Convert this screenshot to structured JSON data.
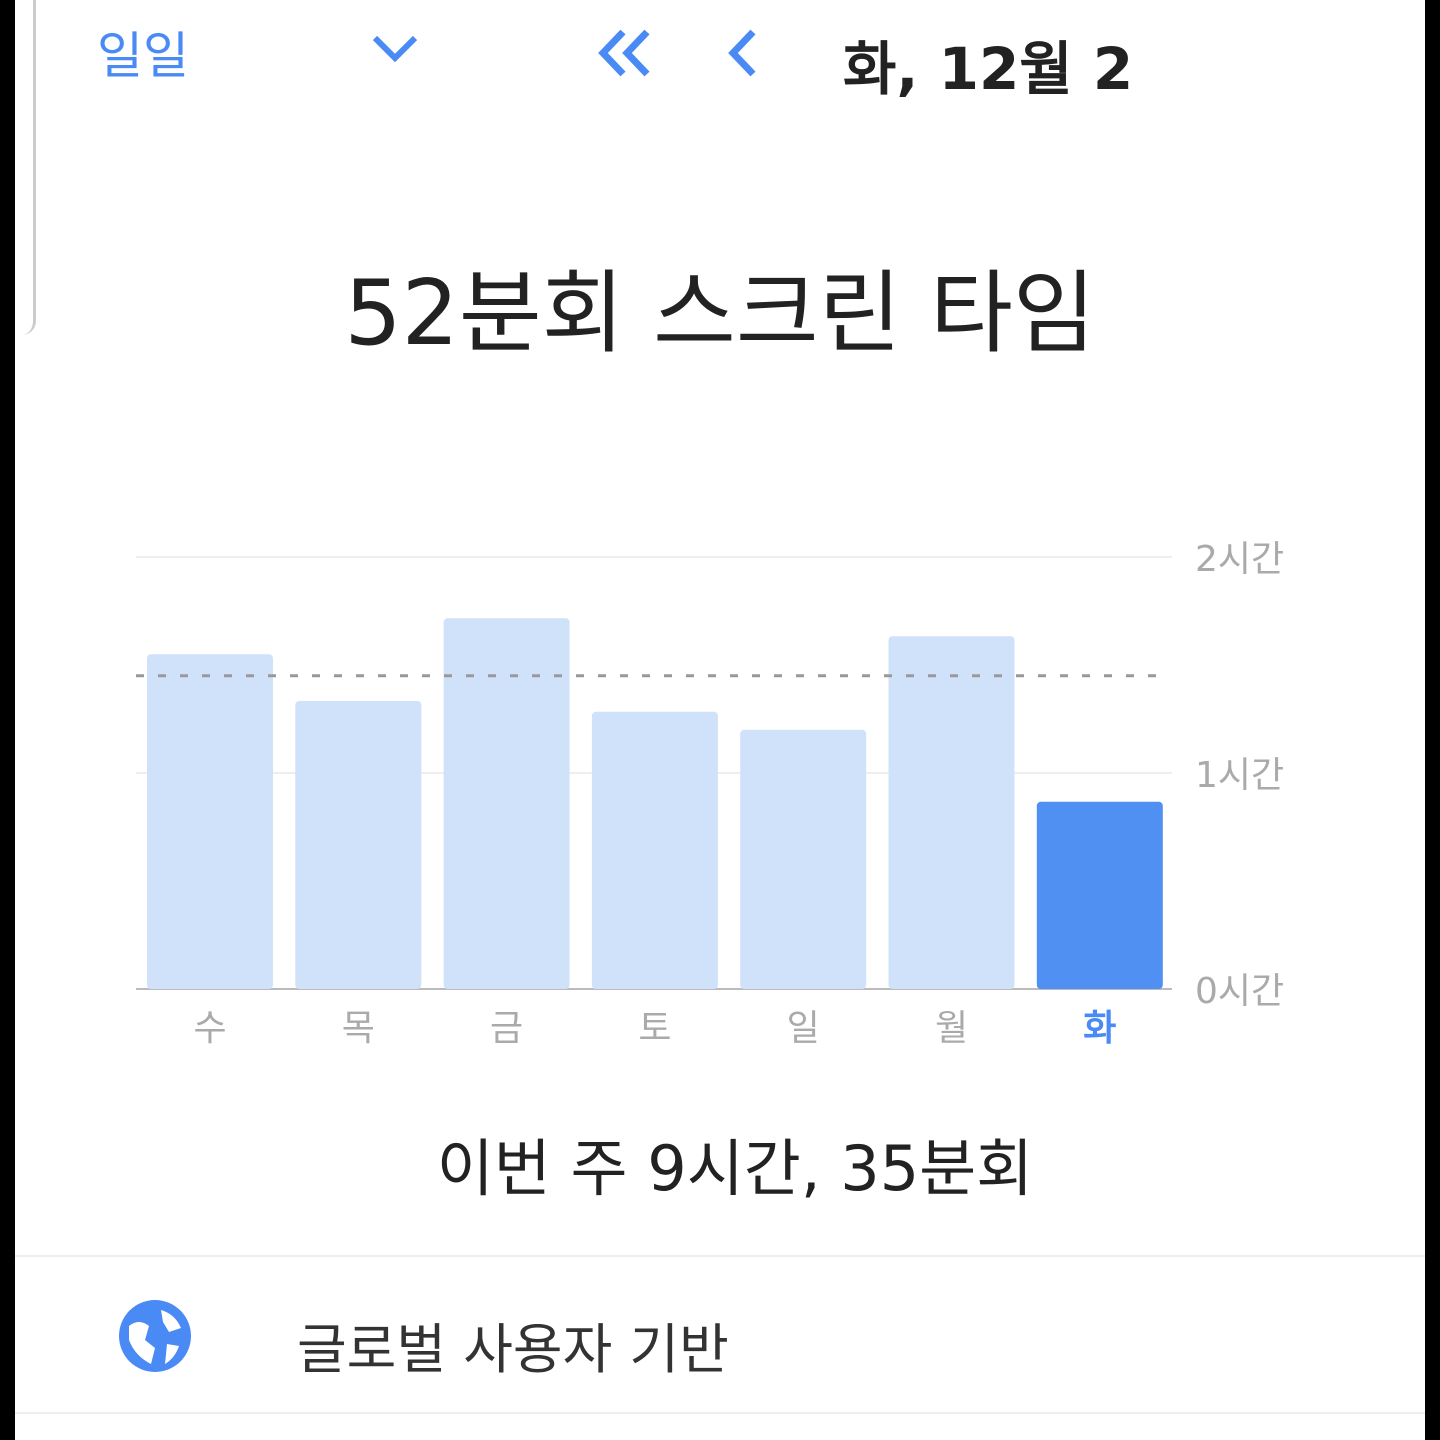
{
  "header": {
    "range_label": "일일",
    "date": "화, 12월 2"
  },
  "title": "52분회 스크린 타임",
  "chart_data": {
    "type": "bar",
    "categories": [
      "수",
      "목",
      "금",
      "토",
      "일",
      "월",
      "화"
    ],
    "values_minutes": [
      93,
      80,
      103,
      77,
      72,
      98,
      52
    ],
    "selected": "화",
    "average_minutes": 87,
    "ylim_minutes": [
      0,
      120
    ],
    "ytick_labels": [
      "0시간",
      "1시간",
      "2시간"
    ],
    "ytick_values_minutes": [
      0,
      60,
      120
    ],
    "colors": {
      "bar": "#d0e1fa",
      "selected": "#5090f2",
      "selected_label": "#4a8af4"
    }
  },
  "week_total": "이번 주 9시간, 35분회",
  "global_row": {
    "label": "글로벌 사용자 기반",
    "icon": "globe-icon"
  }
}
